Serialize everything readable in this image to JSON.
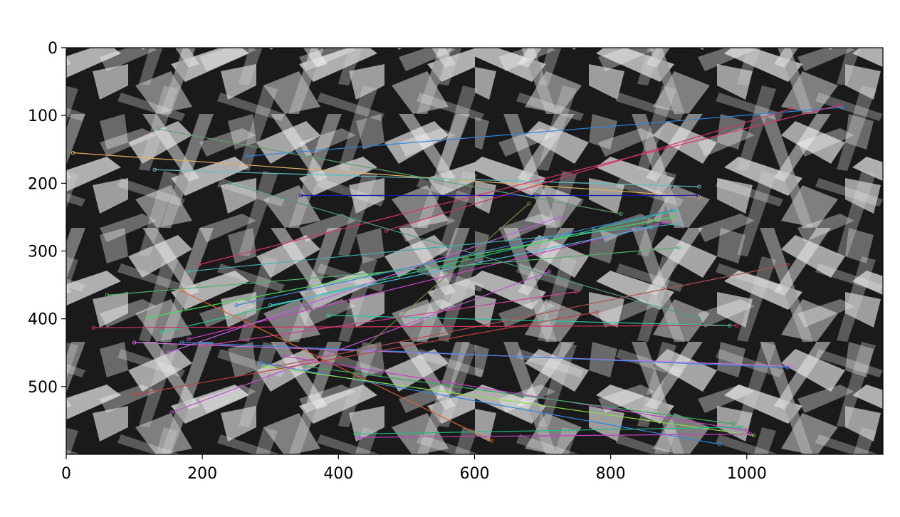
{
  "figure": {
    "x_ticks": [
      "0",
      "200",
      "400",
      "600",
      "800",
      "1000"
    ],
    "y_ticks": [
      "0",
      "100",
      "200",
      "300",
      "400",
      "500"
    ]
  },
  "chart_data": {
    "type": "scatter",
    "xlim": [
      0,
      1200
    ],
    "ylim": [
      600,
      0
    ],
    "x_ticks": [
      0,
      200,
      400,
      600,
      800,
      1000
    ],
    "y_ticks": [
      0,
      100,
      200,
      300,
      400,
      500
    ],
    "image_split_x": 600,
    "matches": [
      {
        "p": [
          10,
          155
        ],
        "q": [
          930,
          220
        ],
        "c": "#e0b060"
      },
      {
        "p": [
          345,
          218
        ],
        "q": [
          928,
          218
        ],
        "c": "#1a1aa8"
      },
      {
        "p": [
          130,
          180
        ],
        "q": [
          930,
          205
        ],
        "c": "#60c0c0"
      },
      {
        "p": [
          265,
          160
        ],
        "q": [
          1140,
          88
        ],
        "c": "#2e86de"
      },
      {
        "p": [
          195,
          320
        ],
        "q": [
          1135,
          85
        ],
        "c": "#e03070"
      },
      {
        "p": [
          470,
          270
        ],
        "q": [
          1065,
          90
        ],
        "c": "#d0306a"
      },
      {
        "p": [
          140,
          420
        ],
        "q": [
          895,
          240
        ],
        "c": "#22cc88"
      },
      {
        "p": [
          120,
          398
        ],
        "q": [
          890,
          250
        ],
        "c": "#44dd55"
      },
      {
        "p": [
          180,
          430
        ],
        "q": [
          880,
          258
        ],
        "c": "#cc44cc"
      },
      {
        "p": [
          300,
          380
        ],
        "q": [
          860,
          265
        ],
        "c": "#44c0e0"
      },
      {
        "p": [
          150,
          450
        ],
        "q": [
          725,
          250
        ],
        "c": "#c060e0"
      },
      {
        "p": [
          40,
          413
        ],
        "q": [
          985,
          410
        ],
        "c": "#d0305a"
      },
      {
        "p": [
          385,
          395
        ],
        "q": [
          975,
          410
        ],
        "c": "#2ec4a0"
      },
      {
        "p": [
          100,
          435
        ],
        "q": [
          1065,
          470
        ],
        "c": "#d070e0"
      },
      {
        "p": [
          170,
          435
        ],
        "q": [
          1060,
          472
        ],
        "c": "#3a88e0"
      },
      {
        "p": [
          60,
          365
        ],
        "q": [
          900,
          295
        ],
        "c": "#50b070"
      },
      {
        "p": [
          168,
          358
        ],
        "q": [
          625,
          580
        ],
        "c": "#e06030"
      },
      {
        "p": [
          285,
          465
        ],
        "q": [
          960,
          585
        ],
        "c": "#2e86de"
      },
      {
        "p": [
          290,
          470
        ],
        "q": [
          1010,
          572
        ],
        "c": "#88dd44"
      },
      {
        "p": [
          320,
          455
        ],
        "q": [
          1000,
          565
        ],
        "c": "#c040c0"
      },
      {
        "p": [
          350,
          470
        ],
        "q": [
          980,
          555
        ],
        "c": "#3aaa60"
      },
      {
        "p": [
          430,
          575
        ],
        "q": [
          1005,
          570
        ],
        "c": "#c040c0"
      },
      {
        "p": [
          425,
          570
        ],
        "q": [
          990,
          560
        ],
        "c": "#20c080"
      },
      {
        "p": [
          155,
          538
        ],
        "q": [
          710,
          330
        ],
        "c": "#c050d0"
      },
      {
        "p": [
          100,
          512
        ],
        "q": [
          780,
          390
        ],
        "c": "#c04040"
      },
      {
        "p": [
          240,
          200
        ],
        "q": [
          930,
          400
        ],
        "c": "#4a9a80"
      },
      {
        "p": [
          135,
          120
        ],
        "q": [
          815,
          245
        ],
        "c": "#60a070"
      },
      {
        "p": [
          310,
          470
        ],
        "q": [
          1060,
          320
        ],
        "c": "#b05050"
      },
      {
        "p": [
          430,
          450
        ],
        "q": [
          680,
          230
        ],
        "c": "#6a8a40"
      },
      {
        "p": [
          200,
          440
        ],
        "q": [
          750,
          360
        ],
        "c": "#d04090"
      },
      {
        "p": [
          250,
          380
        ],
        "q": [
          890,
          240
        ],
        "c": "#4080d0"
      },
      {
        "p": [
          180,
          330
        ],
        "q": [
          900,
          260
        ],
        "c": "#40b0b0"
      }
    ]
  }
}
